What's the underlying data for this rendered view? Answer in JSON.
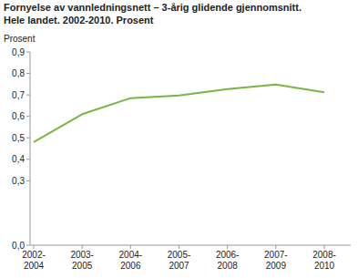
{
  "chart_data": {
    "type": "line",
    "title": "Fornyelse av vannledningsnett – 3-årig glidende gjennomsnitt.",
    "subtitle": "Hele landet. 2002-2010. Prosent",
    "y_label": "Prosent",
    "categories": [
      "2002-2004",
      "2003-2005",
      "2004-2006",
      "2005-2007",
      "2006-2008",
      "2007-2009",
      "2008-2010"
    ],
    "values": [
      0.48,
      0.61,
      0.685,
      0.697,
      0.727,
      0.748,
      0.712
    ],
    "color": "#77b644",
    "ylim": [
      0,
      0.9
    ],
    "yticks": [
      {
        "value": 0,
        "label": "0,0"
      },
      {
        "value": 0.3,
        "label": "0,3"
      },
      {
        "value": 0.4,
        "label": "0,4"
      },
      {
        "value": 0.5,
        "label": "0,5"
      },
      {
        "value": 0.6,
        "label": "0,6"
      },
      {
        "value": 0.7,
        "label": "0,7"
      },
      {
        "value": 0.8,
        "label": "0,8"
      },
      {
        "value": 0.9,
        "label": "0,9"
      }
    ],
    "grid": false
  }
}
